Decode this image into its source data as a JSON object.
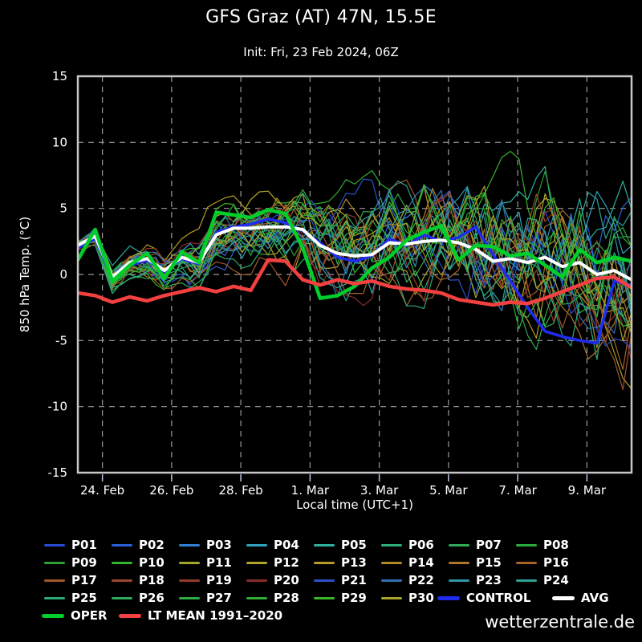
{
  "header": {
    "title": "GFS Graz (AT) 47N, 15.5E",
    "subtitle": "Init: Fri, 23 Feb 2024, 06Z"
  },
  "watermark": "wetterzentrale.de",
  "chart_data": {
    "type": "line",
    "title": "GFS Graz (AT) 47N, 15.5E",
    "subtitle": "Init: Fri, 23 Feb 2024, 06Z",
    "xlabel": "Local time (UTC+1)",
    "ylabel": "850 hPa Temp. (°C)",
    "ylim": [
      -15,
      15
    ],
    "yticks": [
      15,
      10,
      5,
      0,
      -5,
      -10,
      -15
    ],
    "grid": true,
    "x_unit": "days since init (23 Feb 2024 06Z)",
    "x_start": 0,
    "x_step": 0.5,
    "x_end": 16,
    "xticks": [
      {
        "label": "24. Feb",
        "day": 0.71
      },
      {
        "label": "26. Feb",
        "day": 2.71
      },
      {
        "label": "28. Feb",
        "day": 4.71
      },
      {
        "label": "1. Mar",
        "day": 6.71
      },
      {
        "label": "3. Mar",
        "day": 8.71
      },
      {
        "label": "5. Mar",
        "day": 10.71
      },
      {
        "label": "7. Mar",
        "day": 12.71
      },
      {
        "label": "9. Mar",
        "day": 14.71
      }
    ],
    "series": [
      {
        "name": "CONTROL",
        "color": "#1f2bee",
        "width": 3.5,
        "values": [
          2.0,
          2.7,
          -0.4,
          0.7,
          1.1,
          0.2,
          1.2,
          0.8,
          3.2,
          3.6,
          3.8,
          4.2,
          3.9,
          3.3,
          2.4,
          1.3,
          1.0,
          1.4,
          2.7,
          2.2,
          3.0,
          2.5,
          2.8,
          3.6,
          1.5,
          -0.5,
          -2.5,
          -4.3,
          -4.7,
          -5.0,
          -5.2,
          -0.5,
          -0.8
        ]
      },
      {
        "name": "AVG",
        "color": "#ffffff",
        "width": 4,
        "values": [
          2.2,
          2.9,
          -0.2,
          0.9,
          1.2,
          0.3,
          1.3,
          0.9,
          3.0,
          3.5,
          3.5,
          3.6,
          3.6,
          3.4,
          2.2,
          1.6,
          1.4,
          1.5,
          2.4,
          2.3,
          2.5,
          2.6,
          2.4,
          1.9,
          1.0,
          1.2,
          0.9,
          1.3,
          0.6,
          0.9,
          0.0,
          0.3,
          -0.4
        ]
      },
      {
        "name": "OPER",
        "color": "#00cf2b",
        "width": 4.5,
        "values": [
          1.1,
          3.4,
          -0.5,
          0.7,
          1.6,
          -0.3,
          1.7,
          0.9,
          4.7,
          4.5,
          4.3,
          4.9,
          4.6,
          2.0,
          -1.8,
          -1.6,
          -0.9,
          0.5,
          1.3,
          2.6,
          3.2,
          3.7,
          1.1,
          2.2,
          2.1,
          1.4,
          1.6,
          0.7,
          -0.2,
          1.9,
          0.9,
          1.3,
          1.0
        ]
      },
      {
        "name": "LT MEAN 1991–2020",
        "color": "#f34040",
        "width": 4.5,
        "values": [
          -1.4,
          -1.6,
          -2.1,
          -1.7,
          -2.0,
          -1.6,
          -1.3,
          -1.0,
          -1.3,
          -0.9,
          -1.2,
          1.1,
          1.0,
          -0.4,
          -0.8,
          -0.4,
          -0.7,
          -0.5,
          -0.9,
          -1.1,
          -1.2,
          -1.4,
          -1.9,
          -2.1,
          -2.3,
          -2.1,
          -2.2,
          -1.8,
          -1.3,
          -0.8,
          -0.3,
          -0.2,
          -1.0
        ]
      }
    ],
    "ensemble": {
      "note": "30 perturbed ensemble members drawn as thin spaghetti lines around AVG; spread grows from ~±1°C on 24 Feb to ~±7°C by 10 Mar, extremes +10.3 and -9.4",
      "resolution_days": 0.25,
      "spread_base": 0.5,
      "spread_growth_per_day": 0.45,
      "clamp": [
        -9.4,
        10.4
      ],
      "members": [
        {
          "name": "P01",
          "color": "#2a4bd0"
        },
        {
          "name": "P02",
          "color": "#2a5fd6"
        },
        {
          "name": "P03",
          "color": "#2f80cf"
        },
        {
          "name": "P04",
          "color": "#30a2c0"
        },
        {
          "name": "P05",
          "color": "#2eaf9e"
        },
        {
          "name": "P06",
          "color": "#2ead79"
        },
        {
          "name": "P07",
          "color": "#2fab5a"
        },
        {
          "name": "P08",
          "color": "#2cab3d"
        },
        {
          "name": "P09",
          "color": "#2d9f35"
        },
        {
          "name": "P10",
          "color": "#33b42c"
        },
        {
          "name": "P11",
          "color": "#a4a62a"
        },
        {
          "name": "P12",
          "color": "#b1a527"
        },
        {
          "name": "P13",
          "color": "#b79c26"
        },
        {
          "name": "P14",
          "color": "#b48825"
        },
        {
          "name": "P15",
          "color": "#ae7527"
        },
        {
          "name": "P16",
          "color": "#a66428"
        },
        {
          "name": "P17",
          "color": "#a2572c"
        },
        {
          "name": "P18",
          "color": "#99482c"
        },
        {
          "name": "P19",
          "color": "#913a2c"
        },
        {
          "name": "P20",
          "color": "#882d2c"
        },
        {
          "name": "P21",
          "color": "#2b51c6"
        },
        {
          "name": "P22",
          "color": "#2e73b6"
        },
        {
          "name": "P23",
          "color": "#2f96a8"
        },
        {
          "name": "P24",
          "color": "#2ea294"
        },
        {
          "name": "P25",
          "color": "#2ea97a"
        },
        {
          "name": "P26",
          "color": "#2ea95b"
        },
        {
          "name": "P27",
          "color": "#2eab43"
        },
        {
          "name": "P28",
          "color": "#2fae34"
        },
        {
          "name": "P29",
          "color": "#3bb42d"
        },
        {
          "name": "P30",
          "color": "#a8a52a"
        }
      ]
    }
  },
  "legend": {
    "rows": [
      [
        {
          "label": "P01",
          "color": "#2a4bd0"
        },
        {
          "label": "P02",
          "color": "#2a5fd6"
        },
        {
          "label": "P03",
          "color": "#2f80cf"
        },
        {
          "label": "P04",
          "color": "#30a2c0"
        },
        {
          "label": "P05",
          "color": "#2eaf9e"
        },
        {
          "label": "P06",
          "color": "#2ead79"
        },
        {
          "label": "P07",
          "color": "#2fab5a"
        },
        {
          "label": "P08",
          "color": "#2cab3d"
        }
      ],
      [
        {
          "label": "P09",
          "color": "#2d9f35"
        },
        {
          "label": "P10",
          "color": "#33b42c"
        },
        {
          "label": "P11",
          "color": "#a4a62a"
        },
        {
          "label": "P12",
          "color": "#b1a527"
        },
        {
          "label": "P13",
          "color": "#b79c26"
        },
        {
          "label": "P14",
          "color": "#b48825"
        },
        {
          "label": "P15",
          "color": "#ae7527"
        },
        {
          "label": "P16",
          "color": "#a66428"
        }
      ],
      [
        {
          "label": "P17",
          "color": "#a2572c"
        },
        {
          "label": "P18",
          "color": "#99482c"
        },
        {
          "label": "P19",
          "color": "#913a2c"
        },
        {
          "label": "P20",
          "color": "#882d2c"
        },
        {
          "label": "P21",
          "color": "#2b51c6"
        },
        {
          "label": "P22",
          "color": "#2e73b6"
        },
        {
          "label": "P23",
          "color": "#2f96a8"
        },
        {
          "label": "P24",
          "color": "#2ea294"
        }
      ],
      [
        {
          "label": "P25",
          "color": "#2ea97a"
        },
        {
          "label": "P26",
          "color": "#2ea95b"
        },
        {
          "label": "P27",
          "color": "#2eab43"
        },
        {
          "label": "P28",
          "color": "#2fae34"
        },
        {
          "label": "P29",
          "color": "#3bb42d"
        },
        {
          "label": "P30",
          "color": "#a8a52a"
        },
        {
          "label": "CONTROL",
          "color": "#1f2bee",
          "heavy": true
        },
        {
          "label": "AVG",
          "color": "#ffffff",
          "heavy": true
        }
      ],
      [
        {
          "label": "OPER",
          "color": "#00cf2b",
          "heavy": true
        },
        {
          "label": "LT MEAN 1991–2020",
          "color": "#f34040",
          "heavy": true
        }
      ]
    ]
  }
}
